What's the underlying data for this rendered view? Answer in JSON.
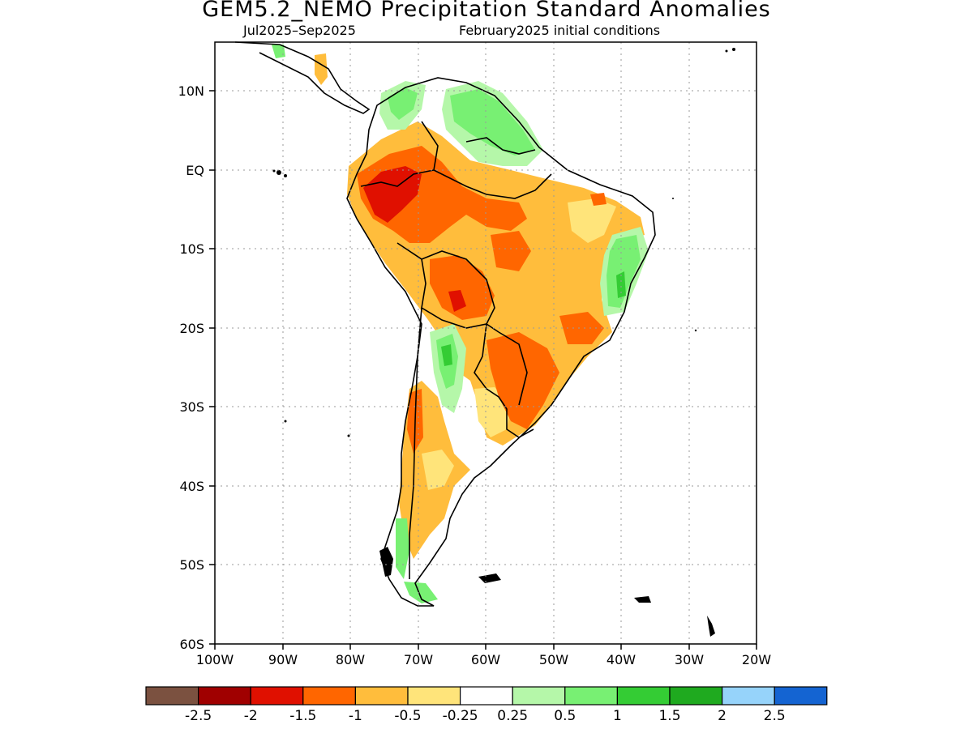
{
  "title": "GEM5.2_NEMO Precipitation Standard Anomalies",
  "subtitle_period": "Jul2025–Sep2025",
  "subtitle_init": "February2025 initial conditions",
  "axes": {
    "lat_labels": [
      "10N",
      "EQ",
      "10S",
      "20S",
      "30S",
      "40S",
      "50S",
      "60S"
    ],
    "lon_labels": [
      "100W",
      "90W",
      "80W",
      "70W",
      "60W",
      "50W",
      "40W",
      "30W",
      "20W"
    ],
    "lat_range": [
      -60,
      15
    ],
    "lon_range": [
      -100,
      -20
    ],
    "grid": "dotted"
  },
  "legend": {
    "placement": "bottom",
    "colors": [
      "#7b5140",
      "#a00000",
      "#e01000",
      "#ff6600",
      "#ffbd3c",
      "#ffe47a",
      "#ffffff",
      "#b5f7a9",
      "#78f073",
      "#34cc34",
      "#1faa1f",
      "#96d3fa",
      "#1464d2"
    ],
    "labels": [
      "-2.5",
      "-2",
      "-1.5",
      "-1",
      "-0.5",
      "-0.25",
      "0.25",
      "0.5",
      "1",
      "1.5",
      "2",
      "2.5"
    ]
  }
}
